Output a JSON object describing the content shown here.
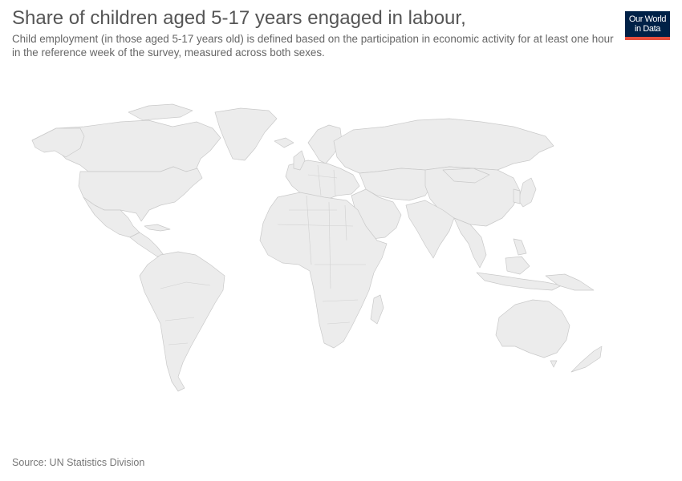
{
  "header": {
    "title": "Share of children aged 5-17 years engaged in labour,",
    "subtitle": "Child employment (in those aged 5-17 years old) is defined based on the participation in economic activity for at least one hour in the reference week of the survey, measured across both sexes."
  },
  "logo": {
    "line1": "Our World",
    "line2": "in Data",
    "bg_color": "#002147",
    "accent_color": "#e84f3d"
  },
  "map": {
    "fill_color": "#ececec",
    "border_color": "#c9c9c9"
  },
  "footer": {
    "source": "Source: UN Statistics Division"
  }
}
